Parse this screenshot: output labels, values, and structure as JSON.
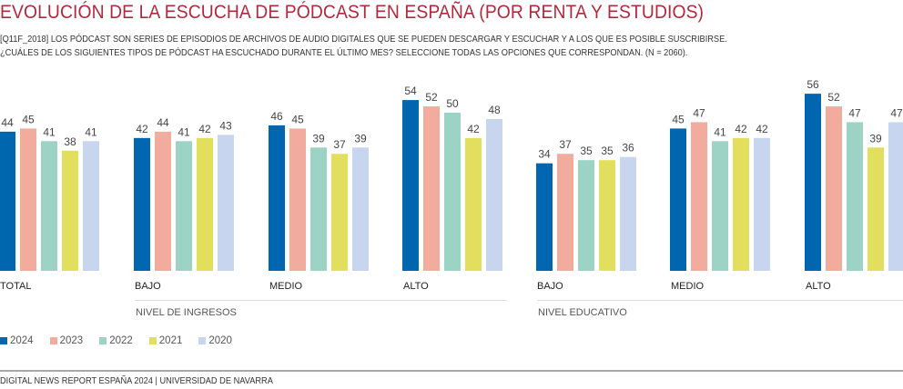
{
  "title": "EVOLUCIÓN DE LA ESCUCHA DE PÓDCAST EN ESPAÑA (POR RENTA Y ESTUDIOS)",
  "subtitle_lines": [
    "[Q11F_2018] LOS PÓDCAST SON SERIES DE EPISODIOS DE ARCHIVOS DE AUDIO DIGITALES QUE SE PUEDEN DESCARGAR Y ESCUCHAR Y A LOS QUE ES POSIBLE SUSCRIBIRSE.",
    "¿CUÁLES DE LOS SIGUIENTES TIPOS DE PÓDCAST HA ESCUCHADO DURANTE EL ÚLTIMO MES? SELECCIONE TODAS LAS OPCIONES QUE CORRESPONDAN. (N = 2060)."
  ],
  "footer": "DIGITAL NEWS REPORT ESPAÑA 2024 | UNIVERSIDAD DE NAVARRA",
  "chart_data": {
    "type": "bar",
    "title": "EVOLUCIÓN DE LA ESCUCHA DE PÓDCAST EN ESPAÑA (POR RENTA Y ESTUDIOS)",
    "xlabel": "",
    "ylabel": "",
    "ylim": [
      0,
      60
    ],
    "grid": false,
    "legend_position": "bottom-left",
    "categories": [
      "TOTAL",
      "BAJO",
      "MEDIO",
      "ALTO",
      "BAJO",
      "MEDIO",
      "ALTO"
    ],
    "category_groups": [
      {
        "label": "",
        "categories": [
          0
        ]
      },
      {
        "label": "NIVEL DE INGRESOS",
        "categories": [
          1,
          2,
          3
        ]
      },
      {
        "label": "NIVEL EDUCATIVO",
        "categories": [
          4,
          5,
          6
        ]
      }
    ],
    "series": [
      {
        "name": "2024",
        "color": "#0066b0",
        "values": [
          44,
          42,
          46,
          54,
          34,
          45,
          56
        ]
      },
      {
        "name": "2023",
        "color": "#f2ac9e",
        "values": [
          45,
          44,
          45,
          52,
          37,
          47,
          52
        ]
      },
      {
        "name": "2022",
        "color": "#9dd3c5",
        "values": [
          41,
          41,
          39,
          50,
          35,
          41,
          47
        ]
      },
      {
        "name": "2021",
        "color": "#e3df5e",
        "values": [
          38,
          42,
          37,
          42,
          35,
          42,
          39
        ]
      },
      {
        "name": "2020",
        "color": "#c8d5ee",
        "values": [
          41,
          43,
          39,
          48,
          36,
          42,
          47
        ]
      }
    ]
  }
}
